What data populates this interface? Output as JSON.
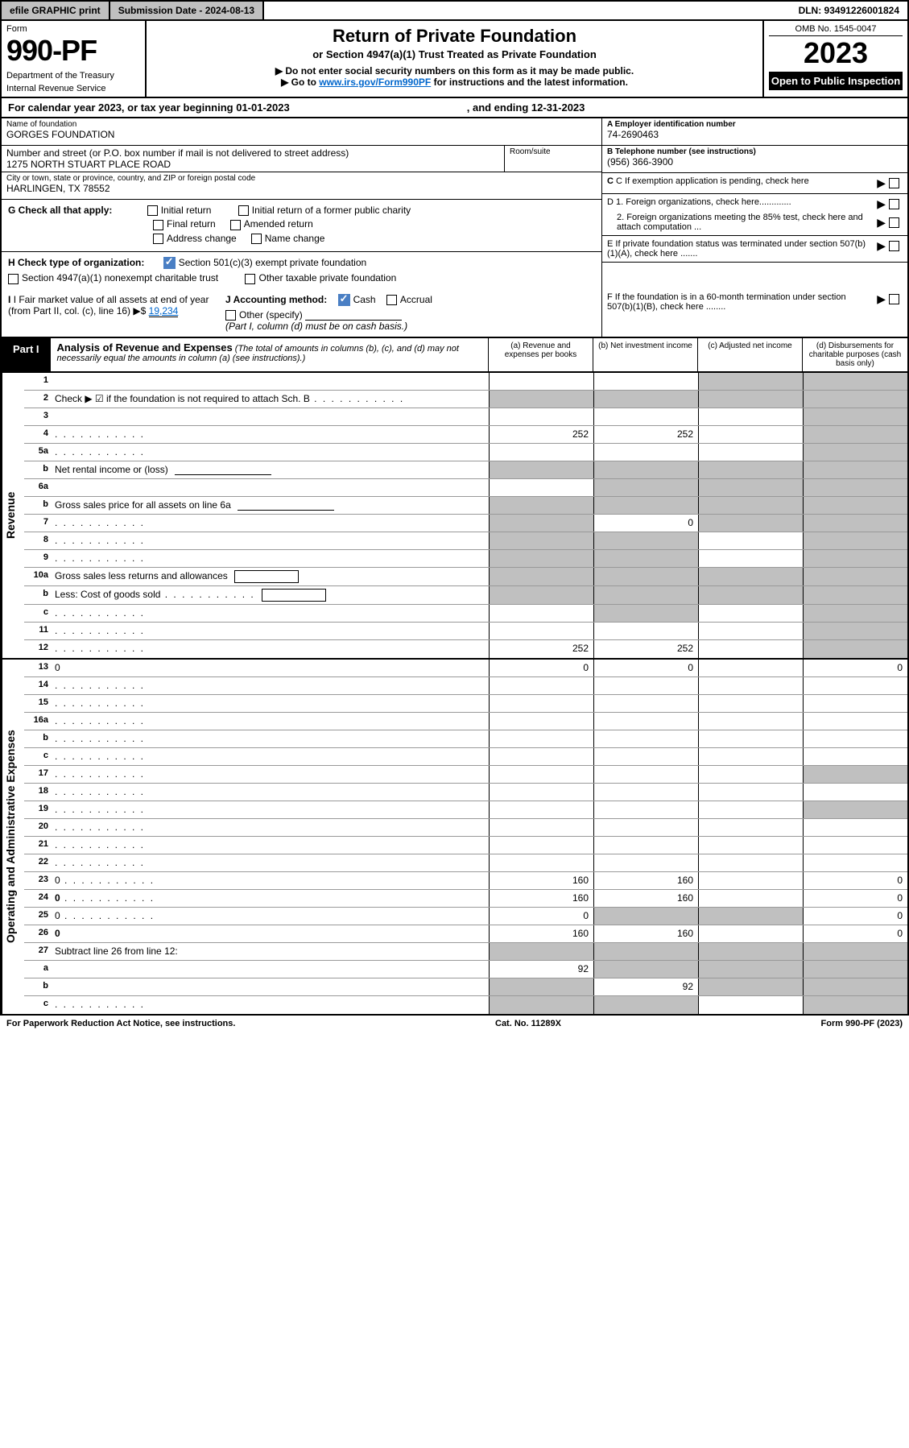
{
  "topbar": {
    "efile": "efile GRAPHIC print",
    "submission_label": "Submission Date - 2024-08-13",
    "dln": "DLN: 93491226001824"
  },
  "header": {
    "form_word": "Form",
    "form_number": "990-PF",
    "dept1": "Department of the Treasury",
    "dept2": "Internal Revenue Service",
    "title": "Return of Private Foundation",
    "subtitle": "or Section 4947(a)(1) Trust Treated as Private Foundation",
    "note1": "▶ Do not enter social security numbers on this form as it may be made public.",
    "note2_pre": "▶ Go to ",
    "note2_link": "www.irs.gov/Form990PF",
    "note2_post": " for instructions and the latest information.",
    "omb": "OMB No. 1545-0047",
    "year": "2023",
    "inspect": "Open to Public Inspection"
  },
  "calendar": {
    "text": "For calendar year 2023, or tax year beginning 01-01-2023",
    "ending": ", and ending 12-31-2023"
  },
  "entity": {
    "name_label": "Name of foundation",
    "name": "GORGES FOUNDATION",
    "addr_label": "Number and street (or P.O. box number if mail is not delivered to street address)",
    "addr": "1275 NORTH STUART PLACE ROAD",
    "room_label": "Room/suite",
    "city_label": "City or town, state or province, country, and ZIP or foreign postal code",
    "city": "HARLINGEN, TX  78552",
    "a_label": "A Employer identification number",
    "a_value": "74-2690463",
    "b_label": "B Telephone number (see instructions)",
    "b_value": "(956) 366-3900",
    "c_label": "C If exemption application is pending, check here",
    "d1_label": "D 1. Foreign organizations, check here.............",
    "d2_label": "2. Foreign organizations meeting the 85% test, check here and attach computation ...",
    "e_label": "E If private foundation status was terminated under section 507(b)(1)(A), check here .......",
    "f_label": "F If the foundation is in a 60-month termination under section 507(b)(1)(B), check here ........"
  },
  "g": {
    "label": "G Check all that apply:",
    "opts": [
      "Initial return",
      "Final return",
      "Address change",
      "Initial return of a former public charity",
      "Amended return",
      "Name change"
    ]
  },
  "h": {
    "label": "H Check type of organization:",
    "opt1": "Section 501(c)(3) exempt private foundation",
    "opt2": "Section 4947(a)(1) nonexempt charitable trust",
    "opt3": "Other taxable private foundation"
  },
  "i": {
    "label": "I Fair market value of all assets at end of year (from Part II, col. (c), line 16)",
    "arrow": "▶$",
    "value": "19,234"
  },
  "j": {
    "label": "J Accounting method:",
    "cash": "Cash",
    "accrual": "Accrual",
    "other": "Other (specify)",
    "note": "(Part I, column (d) must be on cash basis.)"
  },
  "part1": {
    "label": "Part I",
    "title": "Analysis of Revenue and Expenses",
    "title_note": "(The total of amounts in columns (b), (c), and (d) may not necessarily equal the amounts in column (a) (see instructions).)",
    "col_a": "(a)  Revenue and expenses per books",
    "col_b": "(b)  Net investment income",
    "col_c": "(c)  Adjusted net income",
    "col_d": "(d)  Disbursements for charitable purposes (cash basis only)"
  },
  "sections": {
    "revenue": "Revenue",
    "opex": "Operating and Administrative Expenses"
  },
  "rows": [
    {
      "n": "1",
      "d": "",
      "a": "",
      "b": "",
      "c": "",
      "shade": [
        "c",
        "d"
      ]
    },
    {
      "n": "2",
      "d": "Check ▶ ☑ if the foundation is not required to attach Sch. B",
      "dots": true,
      "noData": true,
      "shade": [
        "a",
        "b",
        "c",
        "d"
      ]
    },
    {
      "n": "3",
      "d": "",
      "a": "",
      "b": "",
      "c": "",
      "shade": [
        "d"
      ]
    },
    {
      "n": "4",
      "d": "",
      "dots": true,
      "a": "252",
      "b": "252",
      "c": "",
      "shade": [
        "d"
      ]
    },
    {
      "n": "5a",
      "d": "",
      "dots": true,
      "a": "",
      "b": "",
      "c": "",
      "shade": [
        "d"
      ]
    },
    {
      "n": "b",
      "d": "Net rental income or (loss)",
      "underline": true,
      "noData": true,
      "shade": [
        "a",
        "b",
        "c",
        "d"
      ]
    },
    {
      "n": "6a",
      "d": "",
      "a": "",
      "b": "",
      "c": "",
      "shade": [
        "b",
        "c",
        "d"
      ]
    },
    {
      "n": "b",
      "d": "Gross sales price for all assets on line 6a",
      "underline": true,
      "noData": true,
      "shade": [
        "a",
        "b",
        "c",
        "d"
      ]
    },
    {
      "n": "7",
      "d": "",
      "dots": true,
      "a": "",
      "b": "0",
      "c": "",
      "shade": [
        "a",
        "c",
        "d"
      ]
    },
    {
      "n": "8",
      "d": "",
      "dots": true,
      "a": "",
      "b": "",
      "c": "",
      "shade": [
        "a",
        "b",
        "d"
      ]
    },
    {
      "n": "9",
      "d": "",
      "dots": true,
      "a": "",
      "b": "",
      "c": "",
      "shade": [
        "a",
        "b",
        "d"
      ]
    },
    {
      "n": "10a",
      "d": "Gross sales less returns and allowances",
      "box": true,
      "noData": true,
      "shade": [
        "a",
        "b",
        "c",
        "d"
      ]
    },
    {
      "n": "b",
      "d": "Less: Cost of goods sold",
      "dots": true,
      "box": true,
      "noData": true,
      "shade": [
        "a",
        "b",
        "c",
        "d"
      ]
    },
    {
      "n": "c",
      "d": "",
      "dots": true,
      "a": "",
      "b": "",
      "c": "",
      "shade": [
        "b",
        "d"
      ]
    },
    {
      "n": "11",
      "d": "",
      "dots": true,
      "a": "",
      "b": "",
      "c": "",
      "shade": [
        "d"
      ]
    },
    {
      "n": "12",
      "d": "",
      "dots": true,
      "bold": true,
      "a": "252",
      "b": "252",
      "c": "",
      "shade": [
        "d"
      ]
    }
  ],
  "rows2": [
    {
      "n": "13",
      "d": "0",
      "a": "0",
      "b": "0",
      "c": ""
    },
    {
      "n": "14",
      "d": "",
      "dots": true,
      "a": "",
      "b": "",
      "c": ""
    },
    {
      "n": "15",
      "d": "",
      "dots": true,
      "a": "",
      "b": "",
      "c": ""
    },
    {
      "n": "16a",
      "d": "",
      "dots": true,
      "a": "",
      "b": "",
      "c": ""
    },
    {
      "n": "b",
      "d": "",
      "dots": true,
      "a": "",
      "b": "",
      "c": ""
    },
    {
      "n": "c",
      "d": "",
      "dots": true,
      "a": "",
      "b": "",
      "c": ""
    },
    {
      "n": "17",
      "d": "",
      "dots": true,
      "a": "",
      "b": "",
      "c": "",
      "shade": [
        "d"
      ]
    },
    {
      "n": "18",
      "d": "",
      "dots": true,
      "a": "",
      "b": "",
      "c": ""
    },
    {
      "n": "19",
      "d": "",
      "dots": true,
      "a": "",
      "b": "",
      "c": "",
      "shade": [
        "d"
      ]
    },
    {
      "n": "20",
      "d": "",
      "dots": true,
      "a": "",
      "b": "",
      "c": ""
    },
    {
      "n": "21",
      "d": "",
      "dots": true,
      "a": "",
      "b": "",
      "c": ""
    },
    {
      "n": "22",
      "d": "",
      "dots": true,
      "a": "",
      "b": "",
      "c": ""
    },
    {
      "n": "23",
      "d": "0",
      "dots": true,
      "a": "160",
      "b": "160",
      "c": ""
    },
    {
      "n": "24",
      "d": "0",
      "dots": true,
      "bold": true,
      "a": "160",
      "b": "160",
      "c": ""
    },
    {
      "n": "25",
      "d": "0",
      "dots": true,
      "a": "0",
      "b": "",
      "c": "",
      "shade": [
        "b",
        "c"
      ]
    },
    {
      "n": "26",
      "d": "0",
      "bold": true,
      "a": "160",
      "b": "160",
      "c": ""
    },
    {
      "n": "27",
      "d": "Subtract line 26 from line 12:",
      "noData": true,
      "shade": [
        "a",
        "b",
        "c",
        "d"
      ]
    },
    {
      "n": "a",
      "d": "",
      "bold": true,
      "a": "92",
      "b": "",
      "c": "",
      "shade": [
        "b",
        "c",
        "d"
      ]
    },
    {
      "n": "b",
      "d": "",
      "bold": true,
      "a": "",
      "b": "92",
      "c": "",
      "shade": [
        "a",
        "c",
        "d"
      ]
    },
    {
      "n": "c",
      "d": "",
      "dots": true,
      "bold": true,
      "a": "",
      "b": "",
      "c": "",
      "shade": [
        "a",
        "b",
        "d"
      ]
    }
  ],
  "footer": {
    "left": "For Paperwork Reduction Act Notice, see instructions.",
    "mid": "Cat. No. 11289X",
    "right": "Form 990-PF (2023)"
  },
  "colors": {
    "shaded": "#c0c0c0",
    "checkbox_blue": "#4a7fc4",
    "link": "#0066cc"
  }
}
